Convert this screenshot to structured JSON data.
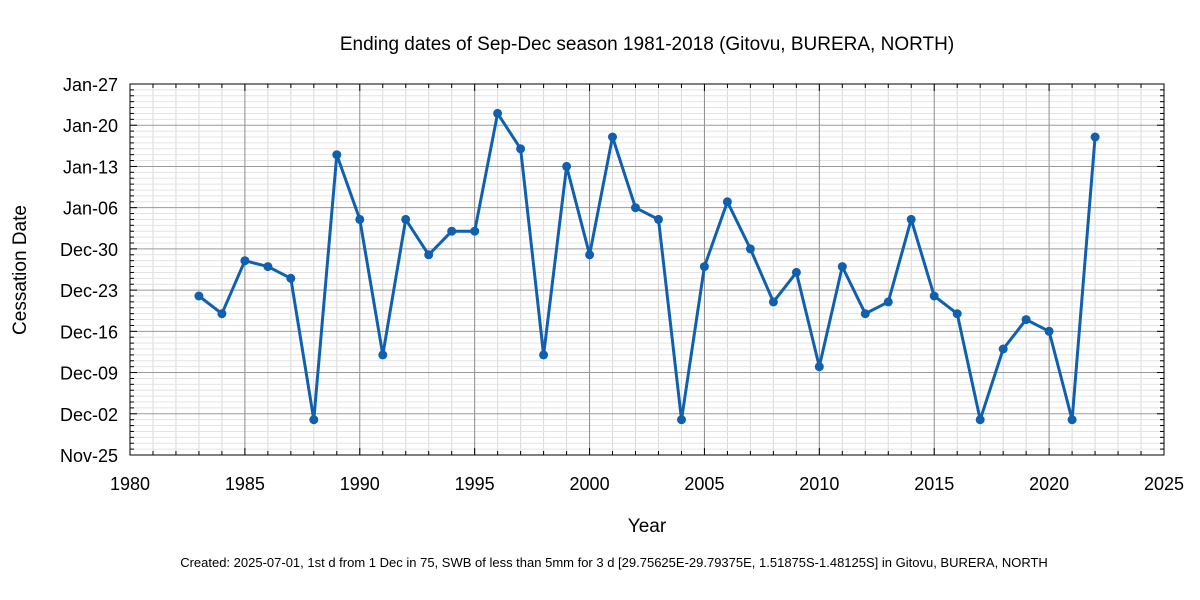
{
  "chart_data": {
    "type": "line",
    "title": "Ending dates of Sep-Dec season 1981-2018 (Gitovu, BURERA, NORTH)",
    "xlabel": "Year",
    "ylabel": "Cessation Date",
    "footer": "Created: 2025-07-01, 1st d from 1 Dec in 75, SWB of less than 5mm for 3 d [29.75625E-29.79375E, 1.51875S-1.48125S] in Gitovu, BURERA, NORTH",
    "xlim": [
      1980,
      2025
    ],
    "ylim": [
      "Nov-25",
      "Jan-27"
    ],
    "x_ticks": [
      "1980",
      "1985",
      "1990",
      "1995",
      "2000",
      "2005",
      "2010",
      "2015",
      "2020",
      "2025"
    ],
    "y_ticks": [
      "Nov-25",
      "Dec-02",
      "Dec-09",
      "Dec-16",
      "Dec-23",
      "Dec-30",
      "Jan-06",
      "Jan-13",
      "Jan-20",
      "Jan-27"
    ],
    "grid": true,
    "line_color": "#1060b0",
    "x": [
      1983,
      1984,
      1985,
      1986,
      1987,
      1988,
      1989,
      1990,
      1991,
      1992,
      1993,
      1994,
      1995,
      1996,
      1997,
      1998,
      1999,
      2000,
      2001,
      2002,
      2003,
      2004,
      2005,
      2006,
      2007,
      2008,
      2009,
      2010,
      2011,
      2012,
      2013,
      2014,
      2015,
      2016,
      2017,
      2018,
      2019,
      2020,
      2021,
      2022
    ],
    "y": [
      "Dec-22",
      "Dec-19",
      "Dec-28",
      "Dec-27",
      "Dec-25",
      "Dec-01",
      "Jan-15",
      "Jan-04",
      "Dec-12",
      "Jan-04",
      "Dec-29",
      "Jan-02",
      "Jan-02",
      "Jan-22",
      "Jan-16",
      "Dec-12",
      "Jan-13",
      "Dec-29",
      "Jan-18",
      "Jan-06",
      "Jan-04",
      "Dec-01",
      "Dec-27",
      "Jan-07",
      "Dec-30",
      "Dec-21",
      "Dec-26",
      "Dec-10",
      "Dec-27",
      "Dec-19",
      "Dec-21",
      "Jan-04",
      "Dec-22",
      "Dec-19",
      "Dec-01",
      "Dec-13",
      "Dec-18",
      "Dec-16",
      "Dec-01",
      "Jan-18"
    ]
  }
}
